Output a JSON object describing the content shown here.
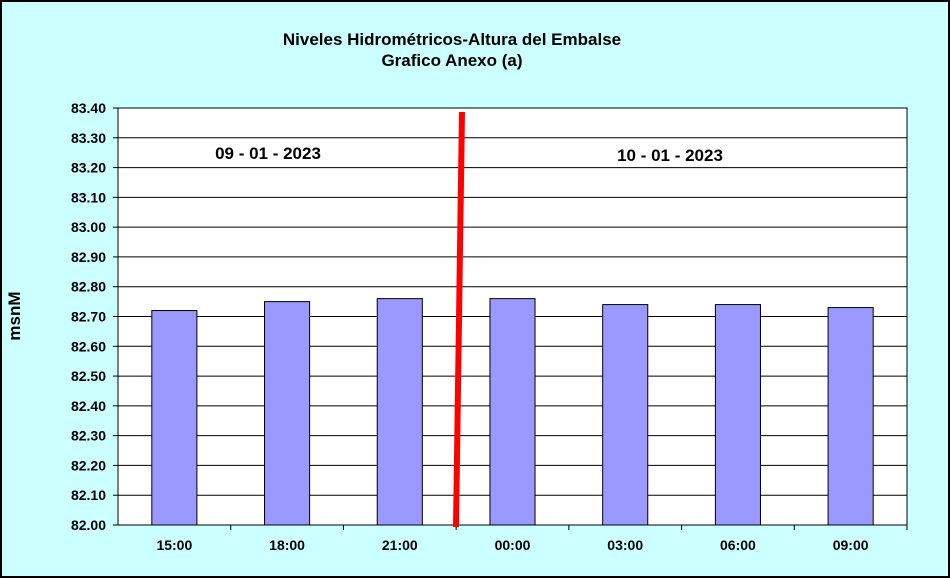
{
  "chart_data": {
    "type": "bar",
    "title": "Niveles Hidrométricos-Altura del Embalse",
    "subtitle": "Grafico Anexo (a)",
    "ylabel": "msnM",
    "xlabel": "",
    "categories": [
      "15:00",
      "18:00",
      "21:00",
      "00:00",
      "03:00",
      "06:00",
      "09:00"
    ],
    "values": [
      82.72,
      82.75,
      82.76,
      82.76,
      82.74,
      82.74,
      82.73
    ],
    "ylim": [
      82.0,
      83.4
    ],
    "ytick_step": 0.1,
    "ytick_labels": [
      "82.00",
      "82.10",
      "82.20",
      "82.30",
      "82.40",
      "82.50",
      "82.60",
      "82.70",
      "82.80",
      "82.90",
      "83.00",
      "83.10",
      "83.20",
      "83.30",
      "83.40"
    ],
    "grid": true,
    "legend": "none",
    "annotations": [
      {
        "text": "09 - 01 - 2023"
      },
      {
        "text": "10 - 01 - 2023"
      }
    ],
    "day_divider_between": [
      "21:00",
      "00:00"
    ]
  },
  "colors": {
    "background": "#ccffff",
    "plot_area": "#ffffff",
    "bar_fill": "#9999ff",
    "bar_stroke": "#000000",
    "grid": "#000000",
    "divider": "#ff0000"
  }
}
